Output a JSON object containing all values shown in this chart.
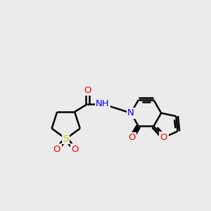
{
  "bg_color": "#ebebeb",
  "bond_color": "#000000",
  "atom_colors": {
    "O": "#ff0000",
    "N": "#0000ff",
    "S": "#cccc00",
    "C": "#000000",
    "H": "#000000"
  },
  "bond_width": 1.8,
  "figsize": [
    3.0,
    3.0
  ],
  "dpi": 100
}
